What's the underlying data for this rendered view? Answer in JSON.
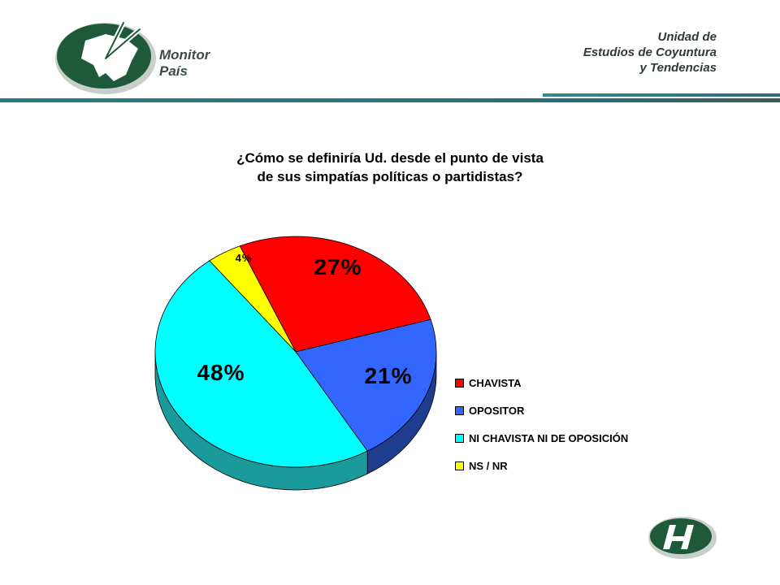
{
  "header": {
    "logo_line1": "Monitor",
    "logo_line2": "País",
    "unit_line1": "Unidad de",
    "unit_line2": "Estudios de Coyuntura",
    "unit_line3": "y Tendencias"
  },
  "chart_data": {
    "type": "pie",
    "title_line1": "¿Cómo se definiría Ud. desde el punto de vista",
    "title_line2": "de sus simpatías políticas o partidistas?",
    "slices": [
      {
        "name": "CHAVISTA",
        "value": 27,
        "label": "27%",
        "color": "#ff0000",
        "side": "#9c1010"
      },
      {
        "name": "OPOSITOR",
        "value": 21,
        "label": "21%",
        "color": "#3366ff",
        "side": "#1f3d8f"
      },
      {
        "name": "NI CHAVISTA NI DE OPOSICIÓN",
        "value": 48,
        "label": "48%",
        "color": "#00ffff",
        "side": "#1a9a9a"
      },
      {
        "name": "NS / NR",
        "value": 4,
        "label": "4%",
        "color": "#ffff00",
        "side": "#a6a600"
      }
    ],
    "legend_position": "right"
  }
}
